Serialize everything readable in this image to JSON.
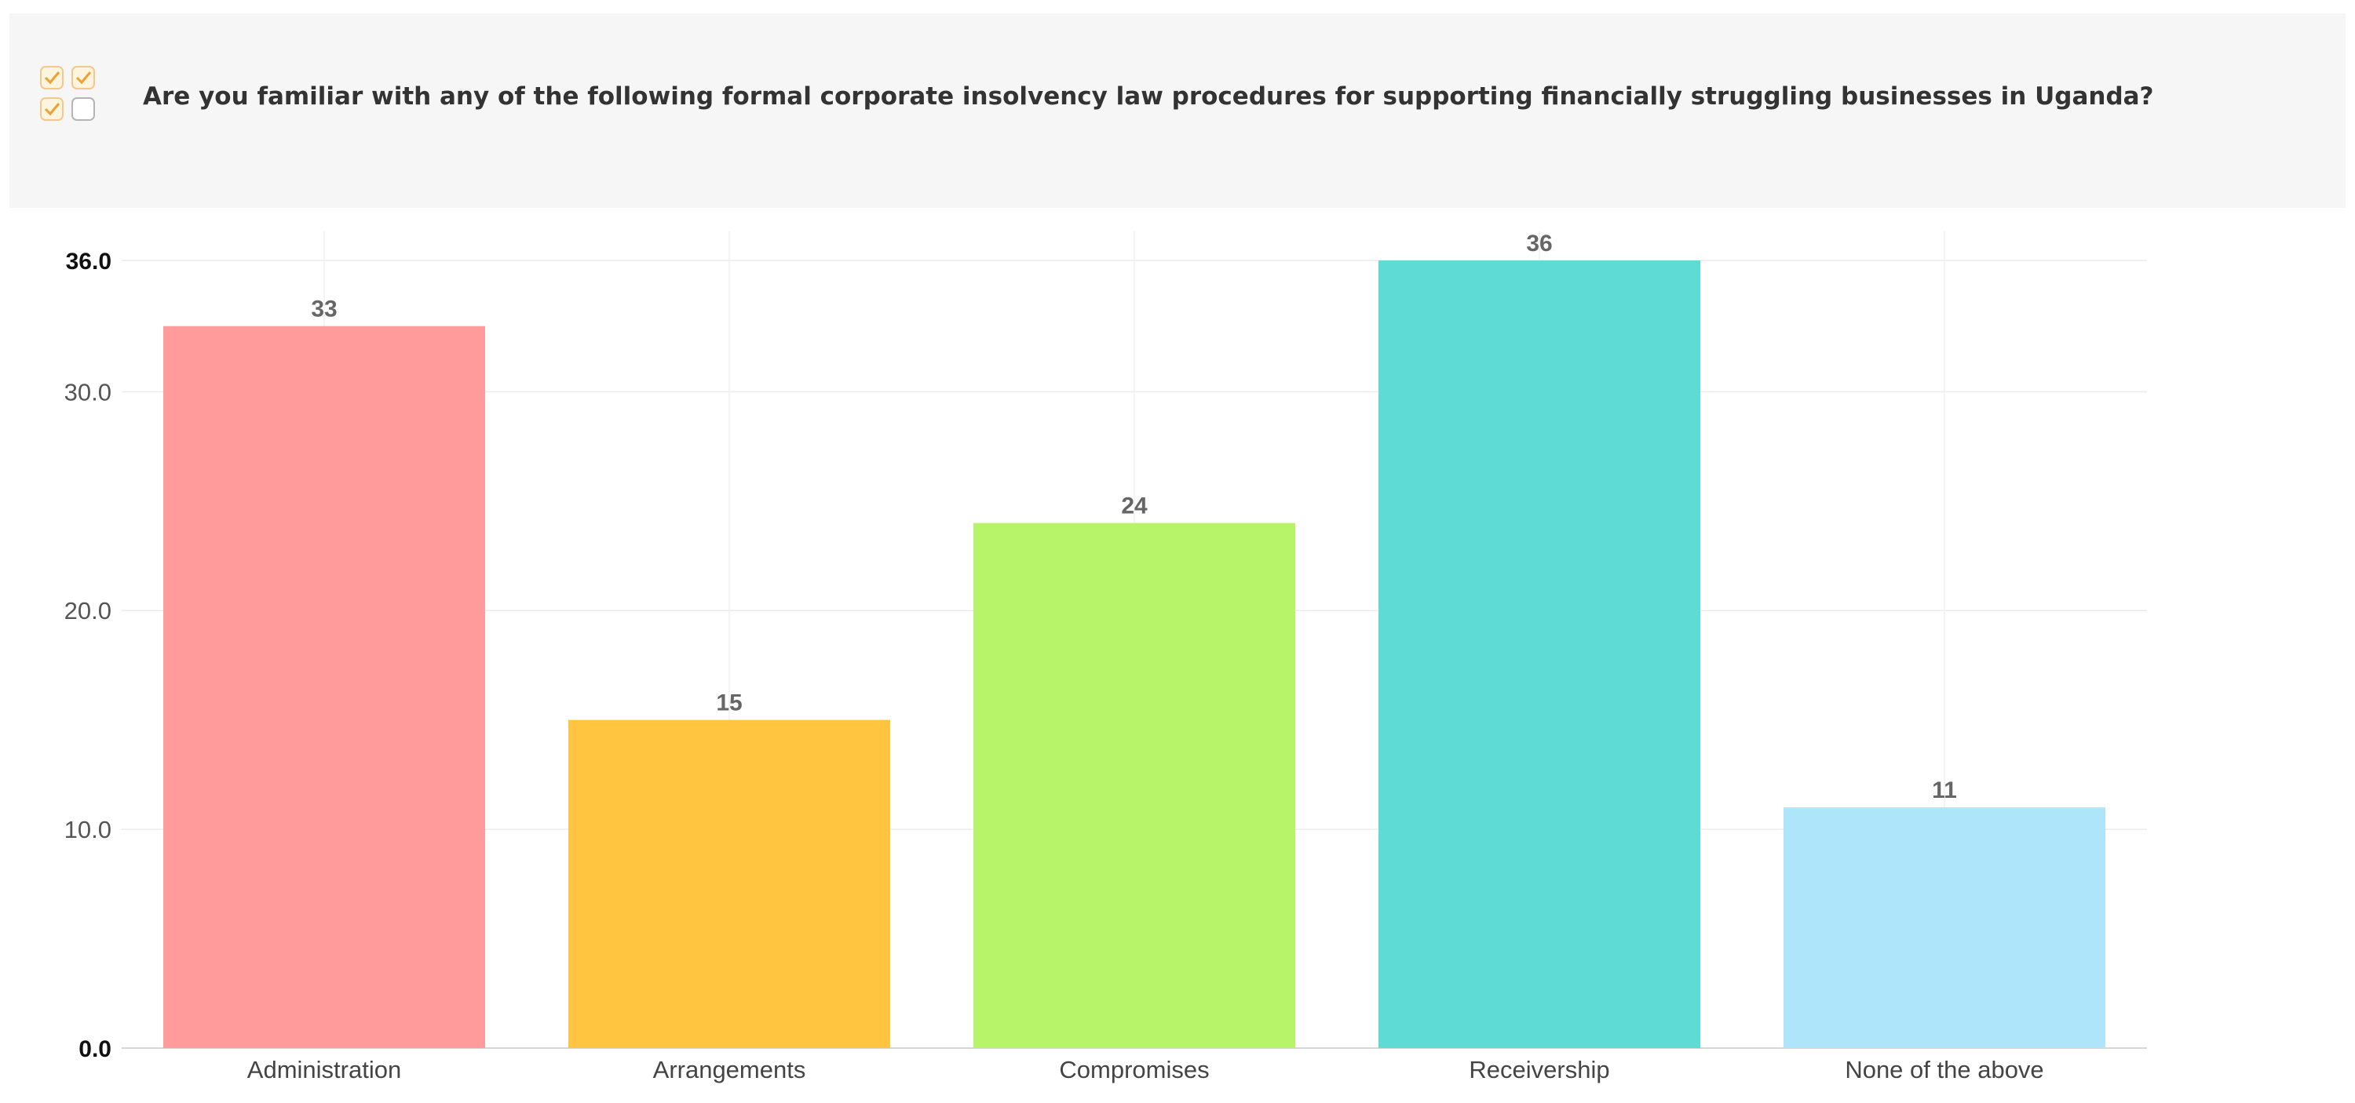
{
  "question": {
    "text": "Are you familiar with any of the following formal corporate insolvency law procedures for supporting financially struggling businesses in Uganda?",
    "icon": "checkbox-group-icon"
  },
  "chart_data": {
    "type": "bar",
    "categories": [
      "Administration",
      "Arrangements",
      "Compromises",
      "Receivership",
      "None of the above"
    ],
    "values": [
      33,
      15,
      24,
      36,
      11
    ],
    "colors": [
      "#ff9b9b",
      "#ffc440",
      "#b8f469",
      "#5fdbd5",
      "#afe5fa"
    ],
    "title": "",
    "xlabel": "",
    "ylabel": "",
    "ylim": [
      0,
      36
    ],
    "yticks": [
      "0.0",
      "10.0",
      "20.0",
      "30.0",
      "36.0"
    ],
    "ytick_values": [
      0,
      10,
      20,
      30,
      36
    ],
    "grid": true,
    "data_labels": true
  }
}
